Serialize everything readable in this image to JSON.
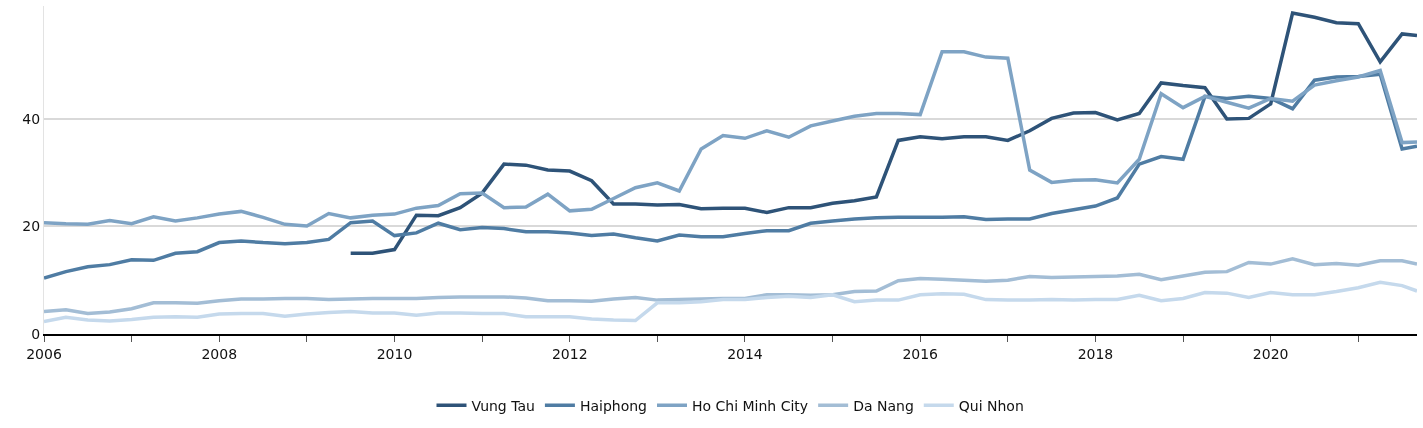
{
  "chart_data": {
    "type": "line",
    "x": [
      2006,
      2006.25,
      2006.5,
      2006.75,
      2007,
      2007.25,
      2007.5,
      2007.75,
      2008,
      2008.25,
      2008.5,
      2008.75,
      2009,
      2009.25,
      2009.5,
      2009.75,
      2010,
      2010.25,
      2010.5,
      2010.75,
      2011,
      2011.25,
      2011.5,
      2011.75,
      2012,
      2012.25,
      2012.5,
      2012.75,
      2013,
      2013.25,
      2013.5,
      2013.75,
      2014,
      2014.25,
      2014.5,
      2014.75,
      2015,
      2015.25,
      2015.5,
      2015.75,
      2016,
      2016.25,
      2016.5,
      2016.75,
      2017,
      2017.25,
      2017.5,
      2017.75,
      2018,
      2018.25,
      2018.5,
      2018.75,
      2019,
      2019.25,
      2019.5,
      2019.75,
      2020,
      2020.25,
      2020.5,
      2020.75,
      2021,
      2021.25,
      2021.5,
      2021.67
    ],
    "series": [
      {
        "name": "Vung Tau",
        "color": "#2e5378",
        "x": [
          2009.5,
          2009.75,
          2010,
          2010.25,
          2010.5,
          2010.75,
          2011,
          2011.25,
          2011.5,
          2011.75,
          2012,
          2012.25,
          2012.5,
          2012.75,
          2013,
          2013.25,
          2013.5,
          2013.75,
          2014,
          2014.25,
          2014.5,
          2014.75,
          2015,
          2015.25,
          2015.5,
          2015.75,
          2016,
          2016.25,
          2016.5,
          2016.75,
          2017,
          2017.25,
          2017.5,
          2017.75,
          2018,
          2018.25,
          2018.5,
          2018.75,
          2019,
          2019.25,
          2019.5,
          2019.75,
          2020,
          2020.25,
          2020.5,
          2020.75,
          2021,
          2021.25,
          2021.5,
          2021.67
        ],
        "values": [
          15.0,
          15.0,
          15.7,
          22.1,
          22.0,
          23.5,
          26.2,
          31.6,
          31.4,
          30.5,
          30.3,
          28.5,
          24.2,
          24.2,
          24.0,
          24.1,
          23.3,
          23.4,
          23.4,
          22.6,
          23.5,
          23.5,
          24.3,
          24.8,
          25.5,
          36.0,
          36.7,
          36.3,
          36.7,
          36.7,
          36.0,
          37.8,
          40.1,
          41.1,
          41.2,
          39.8,
          41.0,
          46.7,
          46.2,
          45.8,
          40.0,
          40.1,
          42.8,
          59.7,
          58.9,
          57.9,
          57.7,
          50.6,
          55.8,
          55.5
        ]
      },
      {
        "name": "Haiphong",
        "color": "#4f7ca3",
        "values": [
          10.4,
          11.6,
          12.5,
          12.9,
          13.8,
          13.7,
          15.0,
          15.3,
          17.0,
          17.3,
          17.0,
          16.8,
          17.0,
          17.6,
          20.7,
          21.0,
          18.3,
          18.8,
          20.6,
          19.4,
          19.8,
          19.6,
          19.0,
          19.0,
          18.8,
          18.3,
          18.6,
          17.9,
          17.3,
          18.4,
          18.1,
          18.1,
          18.7,
          19.2,
          19.2,
          20.6,
          21.0,
          21.4,
          21.6,
          21.7,
          21.7,
          21.7,
          21.8,
          21.3,
          21.4,
          21.4,
          22.4,
          23.1,
          23.8,
          25.3,
          31.6,
          33.0,
          32.5,
          44.2,
          43.8,
          44.2,
          43.8,
          41.9,
          47.2,
          47.8,
          47.9,
          48.3,
          34.4,
          34.9
        ]
      },
      {
        "name": "Ho Chi Minh City",
        "color": "#7ea3c4",
        "values": [
          20.7,
          20.5,
          20.4,
          21.1,
          20.5,
          21.8,
          21.0,
          21.6,
          22.3,
          22.8,
          21.7,
          20.4,
          20.1,
          22.4,
          21.6,
          22.1,
          22.3,
          23.4,
          23.9,
          26.1,
          26.2,
          23.5,
          23.6,
          26.0,
          22.9,
          23.2,
          25.2,
          27.2,
          28.1,
          26.6,
          34.4,
          36.9,
          36.4,
          37.8,
          36.6,
          38.7,
          39.6,
          40.5,
          41.0,
          41.0,
          40.8,
          52.5,
          52.5,
          51.5,
          51.3,
          30.5,
          28.2,
          28.6,
          28.7,
          28.1,
          32.5,
          44.7,
          42.1,
          44.2,
          43.1,
          42.0,
          43.8,
          43.3,
          46.3,
          47.1,
          47.8,
          49.0,
          35.6,
          35.7
        ]
      },
      {
        "name": "Da Nang",
        "color": "#a3bdd5",
        "values": [
          4.2,
          4.5,
          3.8,
          4.1,
          4.7,
          5.8,
          5.8,
          5.7,
          6.2,
          6.5,
          6.5,
          6.6,
          6.6,
          6.4,
          6.5,
          6.6,
          6.6,
          6.6,
          6.8,
          6.9,
          6.9,
          6.9,
          6.7,
          6.2,
          6.2,
          6.1,
          6.5,
          6.8,
          6.3,
          6.4,
          6.5,
          6.6,
          6.6,
          7.3,
          7.3,
          7.2,
          7.3,
          7.9,
          8.0,
          9.9,
          10.3,
          10.2,
          10.0,
          9.8,
          10.0,
          10.7,
          10.5,
          10.6,
          10.7,
          10.8,
          11.1,
          10.1,
          10.8,
          11.5,
          11.6,
          13.3,
          13.0,
          14.0,
          12.9,
          13.1,
          12.8,
          13.6,
          13.6,
          13.0
        ]
      },
      {
        "name": "Qui Nhon",
        "color": "#c5d9ec",
        "values": [
          2.3,
          3.1,
          2.6,
          2.4,
          2.7,
          3.1,
          3.2,
          3.1,
          3.7,
          3.8,
          3.8,
          3.3,
          3.7,
          4.0,
          4.2,
          3.9,
          3.9,
          3.5,
          3.9,
          3.9,
          3.8,
          3.8,
          3.2,
          3.2,
          3.2,
          2.8,
          2.6,
          2.5,
          5.8,
          5.8,
          6.0,
          6.4,
          6.4,
          6.8,
          7.0,
          6.8,
          7.3,
          6.0,
          6.3,
          6.3,
          7.3,
          7.5,
          7.4,
          6.4,
          6.3,
          6.3,
          6.4,
          6.3,
          6.4,
          6.4,
          7.2,
          6.2,
          6.6,
          7.7,
          7.6,
          6.8,
          7.7,
          7.3,
          7.3,
          7.9,
          8.6,
          9.6,
          9.0,
          8.0
        ]
      }
    ],
    "xlim": [
      2006,
      2021.67
    ],
    "xticks": [
      2006,
      {
        "value": 2007,
        "label": null
      },
      2008,
      {
        "value": 2009,
        "label": null
      },
      2010,
      {
        "value": 2011,
        "label": null
      },
      2012,
      {
        "value": 2013,
        "label": null
      },
      2014,
      {
        "value": 2015,
        "label": null
      },
      2016,
      {
        "value": 2017,
        "label": null
      },
      2018,
      {
        "value": 2019,
        "label": null
      },
      2020,
      {
        "value": 2021,
        "label": null
      }
    ],
    "ylim": [
      0,
      61
    ],
    "yticks": [
      0,
      20,
      40
    ],
    "grid": "y",
    "legend": "bottom",
    "marker": "none",
    "line_style": "solid"
  }
}
